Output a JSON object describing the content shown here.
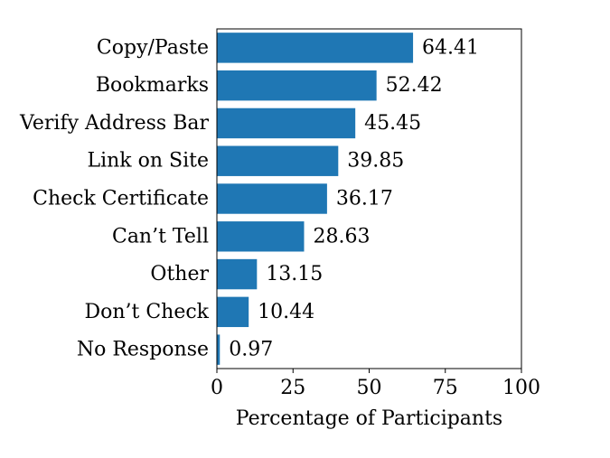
{
  "chart_data": {
    "type": "bar",
    "orientation": "horizontal",
    "categories": [
      "Copy/Paste",
      "Bookmarks",
      "Verify Address Bar",
      "Link on Site",
      "Check Certificate",
      "Can’t Tell",
      "Other",
      "Don’t Check",
      "No Response"
    ],
    "values": [
      64.41,
      52.42,
      45.45,
      39.85,
      36.17,
      28.63,
      13.15,
      10.44,
      0.97
    ],
    "value_labels": [
      "64.41",
      "52.42",
      "45.45",
      "39.85",
      "36.17",
      "28.63",
      "13.15",
      "10.44",
      "0.97"
    ],
    "xlabel": "Percentage of Participants",
    "ylabel": "",
    "title": "",
    "xlim": [
      0,
      100
    ],
    "xticks": [
      0,
      25,
      50,
      75,
      100
    ],
    "xtick_labels": [
      "0",
      "25",
      "50",
      "75",
      "100"
    ],
    "grid": false,
    "bar_color": "#1f77b4"
  }
}
